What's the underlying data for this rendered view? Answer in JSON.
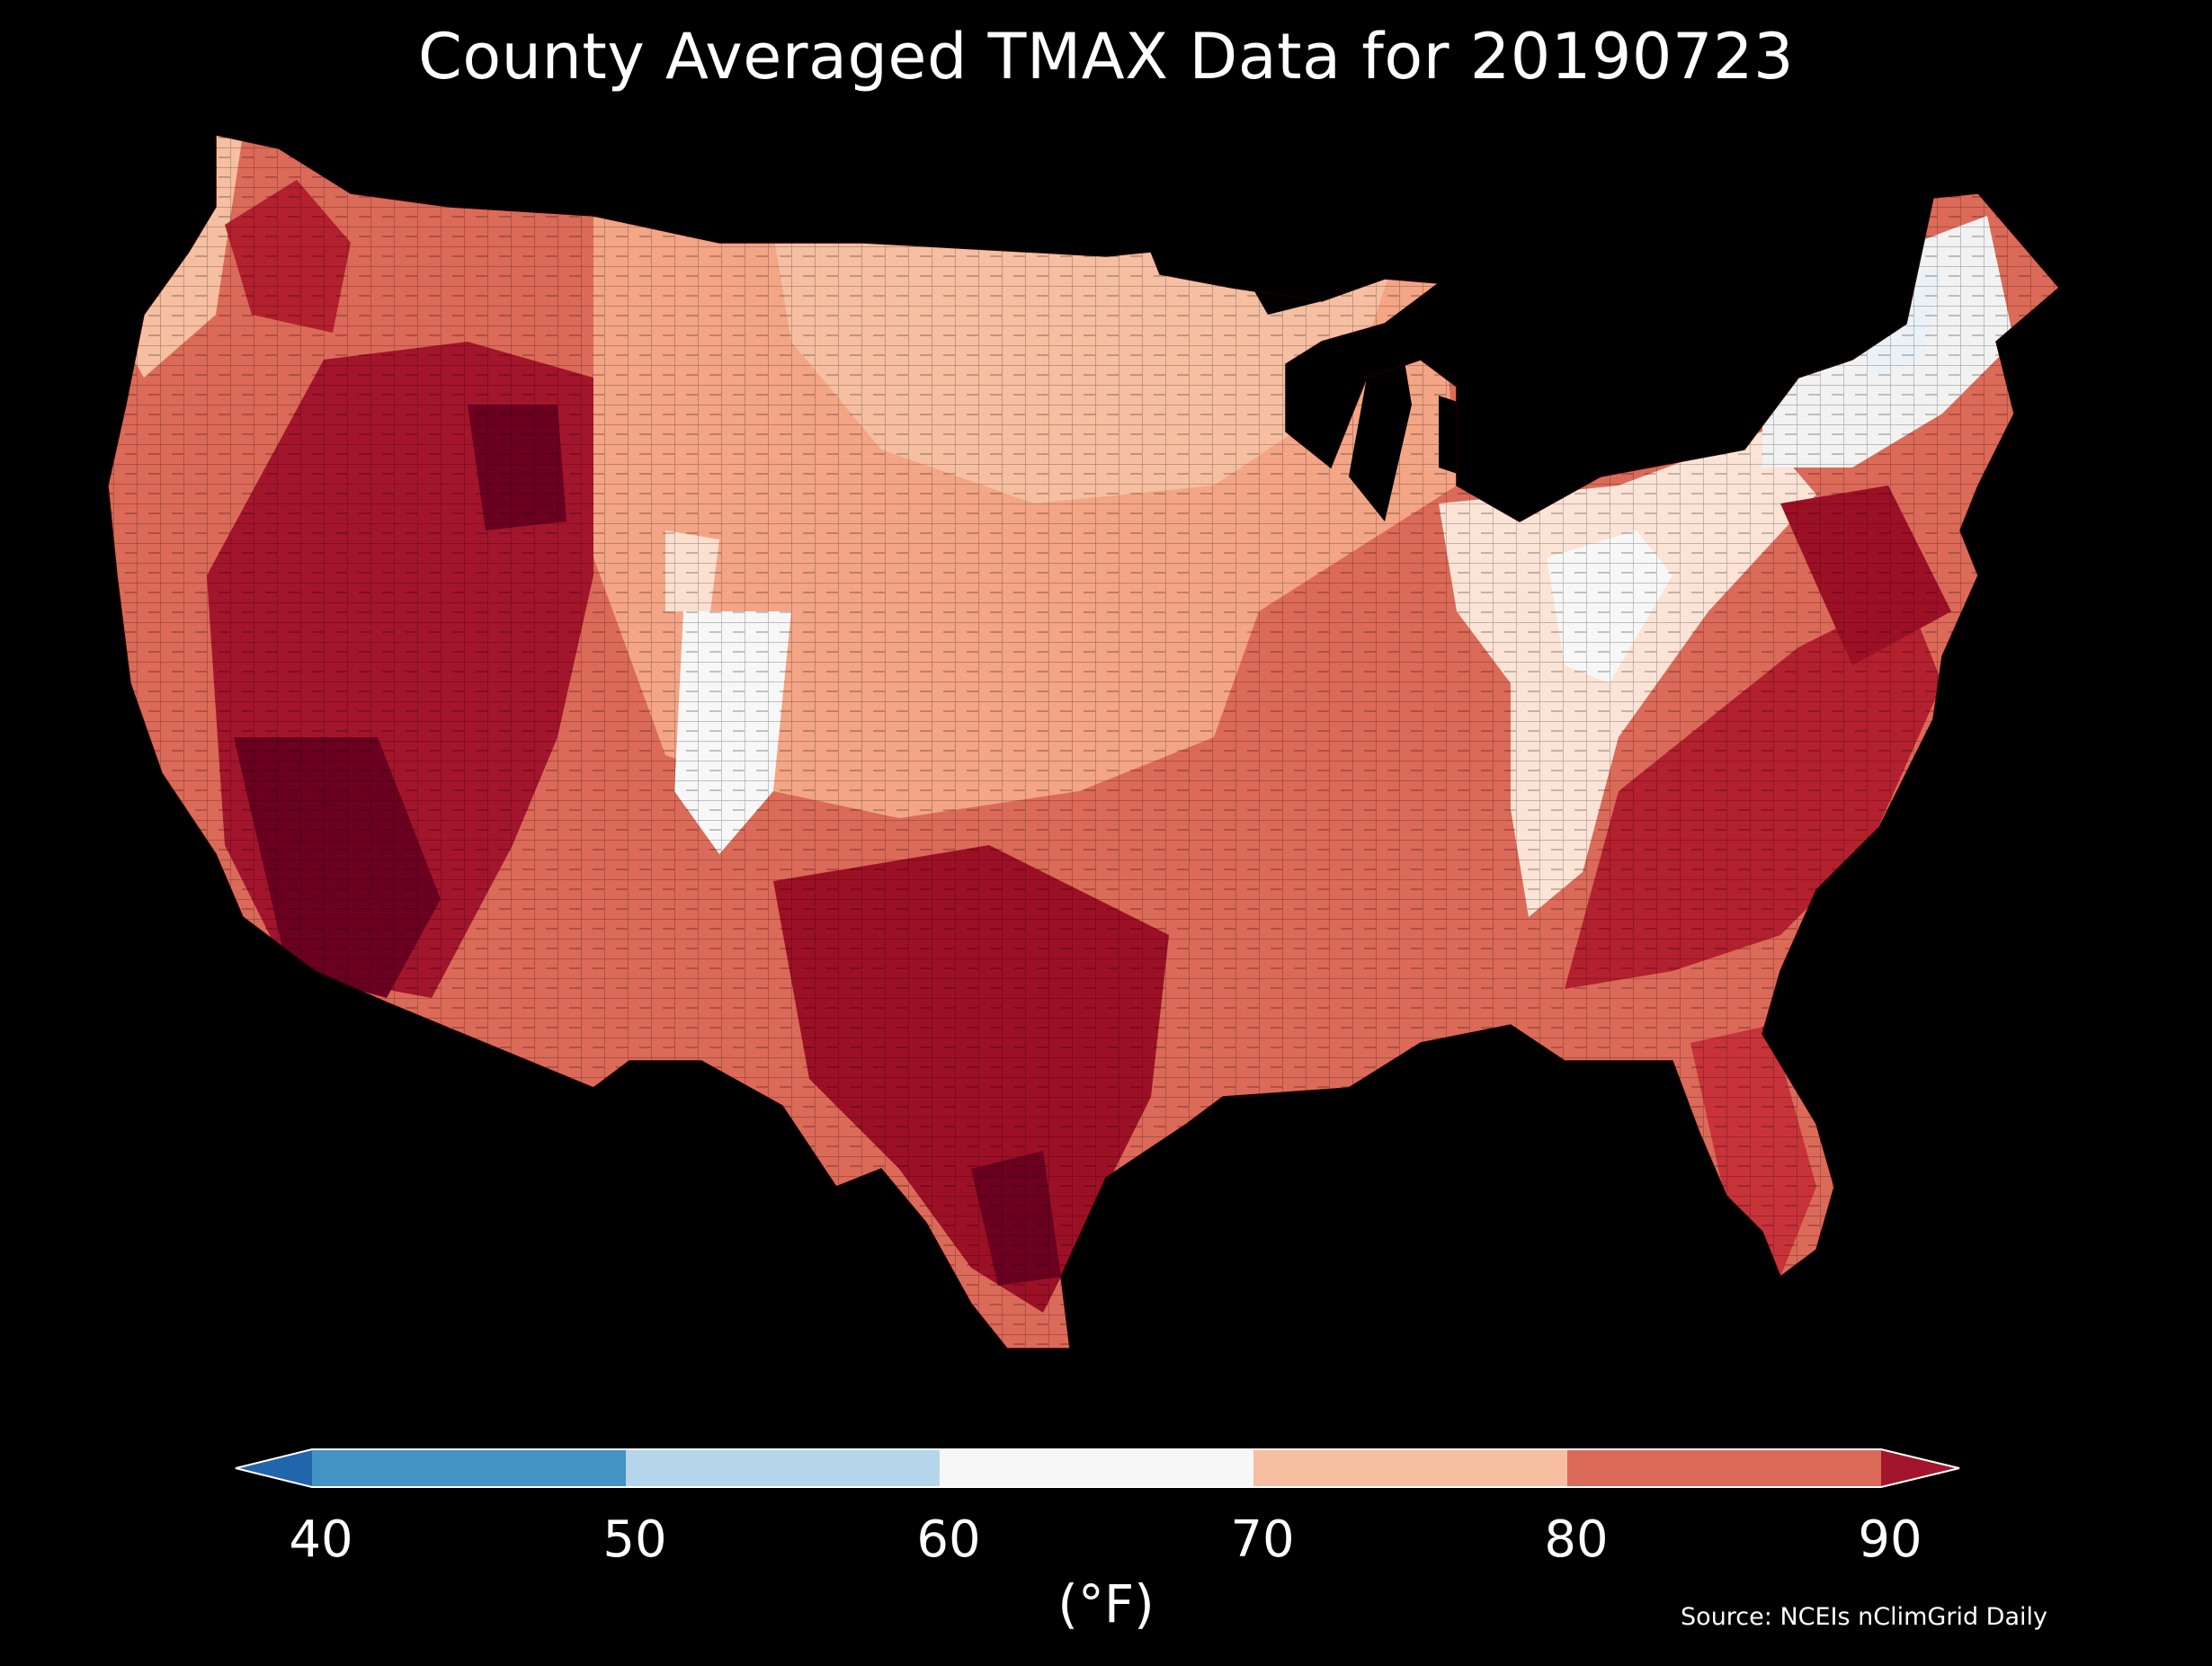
{
  "title": "County Averaged TMAX Data for 20190723",
  "colorbar": {
    "unit_label": "(°F)",
    "ticks": [
      "40",
      "50",
      "60",
      "70",
      "80",
      "90"
    ],
    "bins": [
      {
        "range": "<40",
        "color": "#2166ac"
      },
      {
        "range": "40-50",
        "color": "#4393c3"
      },
      {
        "range": "50-60",
        "color": "#b5d6ea"
      },
      {
        "range": "60-70",
        "color": "#f7f7f7"
      },
      {
        "range": "70-80",
        "color": "#f6bfa1"
      },
      {
        "range": "80-90",
        "color": "#dc6a58"
      },
      {
        "range": ">90",
        "color": "#a3152c"
      }
    ],
    "extend": "both"
  },
  "source": "Source: NCEIs nClimGrid Daily",
  "map": {
    "region": "Contiguous United States counties",
    "background": "#000000",
    "regions": [
      {
        "name": "Pacific Northwest coast",
        "tmax_band": "70-80"
      },
      {
        "name": "Desert Southwest",
        "tmax_band": ">90"
      },
      {
        "name": "Great Basin",
        "tmax_band": ">90"
      },
      {
        "name": "Colorado Rockies",
        "tmax_band": "60-70"
      },
      {
        "name": "Northern Plains",
        "tmax_band": "70-80"
      },
      {
        "name": "Upper Midwest",
        "tmax_band": "70-80"
      },
      {
        "name": "Ohio Valley / Appalachians",
        "tmax_band": "60-70"
      },
      {
        "name": "New England / Upstate NY",
        "tmax_band": "60-70"
      },
      {
        "name": "Texas",
        "tmax_band": ">90"
      },
      {
        "name": "Southeast",
        "tmax_band": "80-90"
      },
      {
        "name": "Florida",
        "tmax_band": "80-90"
      },
      {
        "name": "Mid-Atlantic coast",
        "tmax_band": ">90"
      }
    ]
  }
}
